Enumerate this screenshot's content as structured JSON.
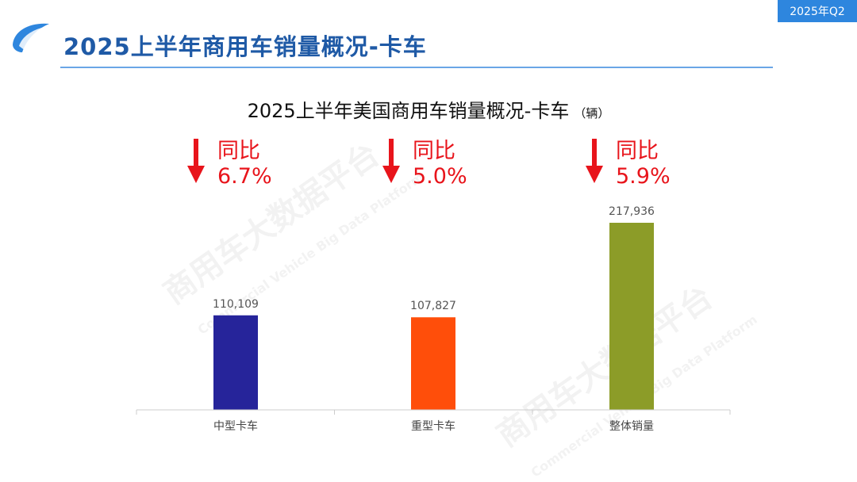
{
  "header": {
    "badge": "2025年Q2",
    "title": "2025上半年商用车销量概况-卡车",
    "watermark": "商用车大数据平台",
    "watermark_en": "Commercial Vehicle Big Data Platform"
  },
  "chart_data": {
    "type": "bar",
    "title": "2025上半年美国商用车销量概况-卡车",
    "unit": "（辆）",
    "categories": [
      "中型卡车",
      "重型卡车",
      "整体销量"
    ],
    "values": [
      110109,
      107827,
      217936
    ],
    "value_labels": [
      "110,109",
      "107,827",
      "217,936"
    ],
    "colors": [
      "#26249a",
      "#ff4e0a",
      "#8c9c28"
    ],
    "yoy": [
      {
        "label": "同比",
        "value": "6.7%",
        "direction": "down"
      },
      {
        "label": "同比",
        "value": "5.0%",
        "direction": "down"
      },
      {
        "label": "同比",
        "value": "5.9%",
        "direction": "down"
      }
    ],
    "yoy_color": "#e8141b",
    "ylim": [
      0,
      217936
    ],
    "grid": false,
    "legend": "none"
  }
}
